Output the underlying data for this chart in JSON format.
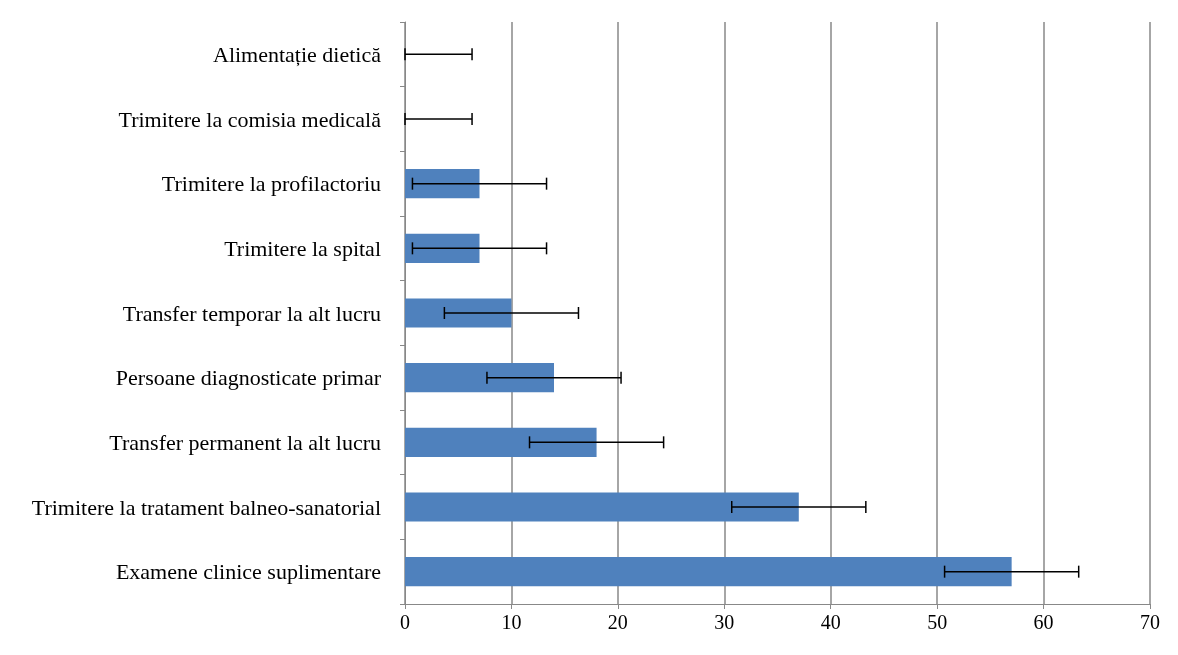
{
  "chart_data": {
    "type": "bar",
    "orientation": "horizontal",
    "categories": [
      "Alimentație dietică",
      "Trimitere la comisia medicală",
      "Trimitere la profilactoriu",
      "Trimitere la spital",
      "Transfer temporar la alt lucru",
      "Persoane diagnosticate primar",
      "Transfer permanent la alt lucru",
      "Trimitere la tratament balneo-sanatorial",
      "Examene clinice suplimentare"
    ],
    "values": [
      0,
      0,
      7,
      7,
      10,
      14,
      18,
      37,
      57
    ],
    "errors": [
      [
        0,
        6.3
      ],
      [
        0,
        6.3
      ],
      6.3,
      6.3,
      6.3,
      6.3,
      6.3,
      6.3,
      6.3
    ],
    "color": "#4f81bd",
    "xlim": [
      0,
      70
    ],
    "xticks": [
      0,
      10,
      20,
      30,
      40,
      50,
      60,
      70
    ],
    "grid": "x"
  }
}
